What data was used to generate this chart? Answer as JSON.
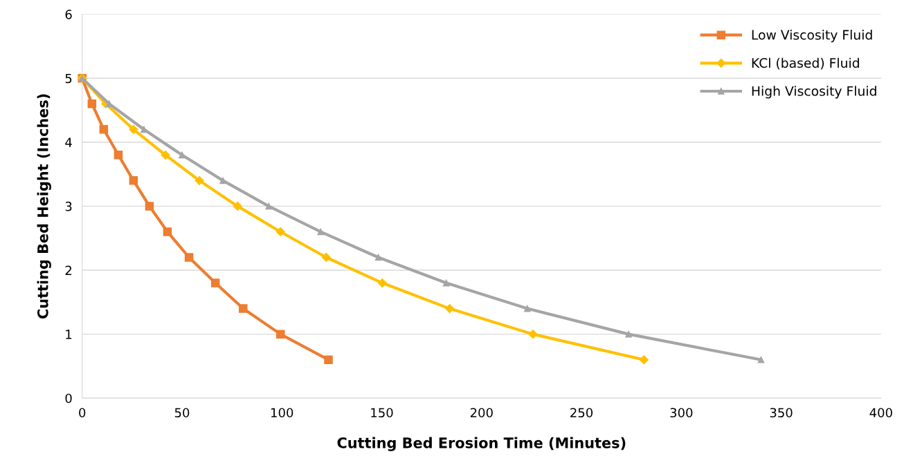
{
  "chart_data": {
    "type": "line",
    "xlabel": "Cutting Bed Erosion Time (Minutes)",
    "ylabel": "Cutting Bed Height (Inches)",
    "xlim": [
      0,
      400
    ],
    "xticks": [
      0,
      50,
      100,
      150,
      200,
      250,
      300,
      350,
      400
    ],
    "ylim": [
      0,
      6
    ],
    "yticks": [
      0,
      1,
      2,
      3,
      4,
      5,
      6
    ],
    "grid": "y",
    "legend": "top right",
    "series": [
      {
        "name": "Low Viscosity Fluid",
        "color": "#ed7d31",
        "marker": "square",
        "x": [
          0,
          4.9,
          10.8,
          18.1,
          25.7,
          33.7,
          42.7,
          53.5,
          66.7,
          80.6,
          99.3,
          123.3
        ],
        "values": [
          5,
          4.6,
          4.2,
          3.8,
          3.4,
          3.0,
          2.6,
          2.2,
          1.8,
          1.4,
          1.0,
          0.6
        ]
      },
      {
        "name": "KCl (based) Fluid",
        "color": "#ffc000",
        "marker": "diamond",
        "x": [
          0,
          11.8,
          25.7,
          41.7,
          58.7,
          77.8,
          99.3,
          122.2,
          150.3,
          184,
          225.7,
          281.3
        ],
        "values": [
          5,
          4.6,
          4.2,
          3.8,
          3.4,
          3.0,
          2.6,
          2.2,
          1.8,
          1.4,
          1.0,
          0.6
        ]
      },
      {
        "name": "High Viscosity Fluid",
        "color": "#a5a5a5",
        "marker": "triangle",
        "x": [
          0,
          13.5,
          30.9,
          50,
          70.5,
          93.4,
          119.4,
          148.3,
          182.3,
          222.9,
          273.6,
          339.9
        ],
        "values": [
          5,
          4.6,
          4.2,
          3.8,
          3.4,
          3.0,
          2.6,
          2.2,
          1.8,
          1.4,
          1.0,
          0.6
        ]
      }
    ]
  }
}
